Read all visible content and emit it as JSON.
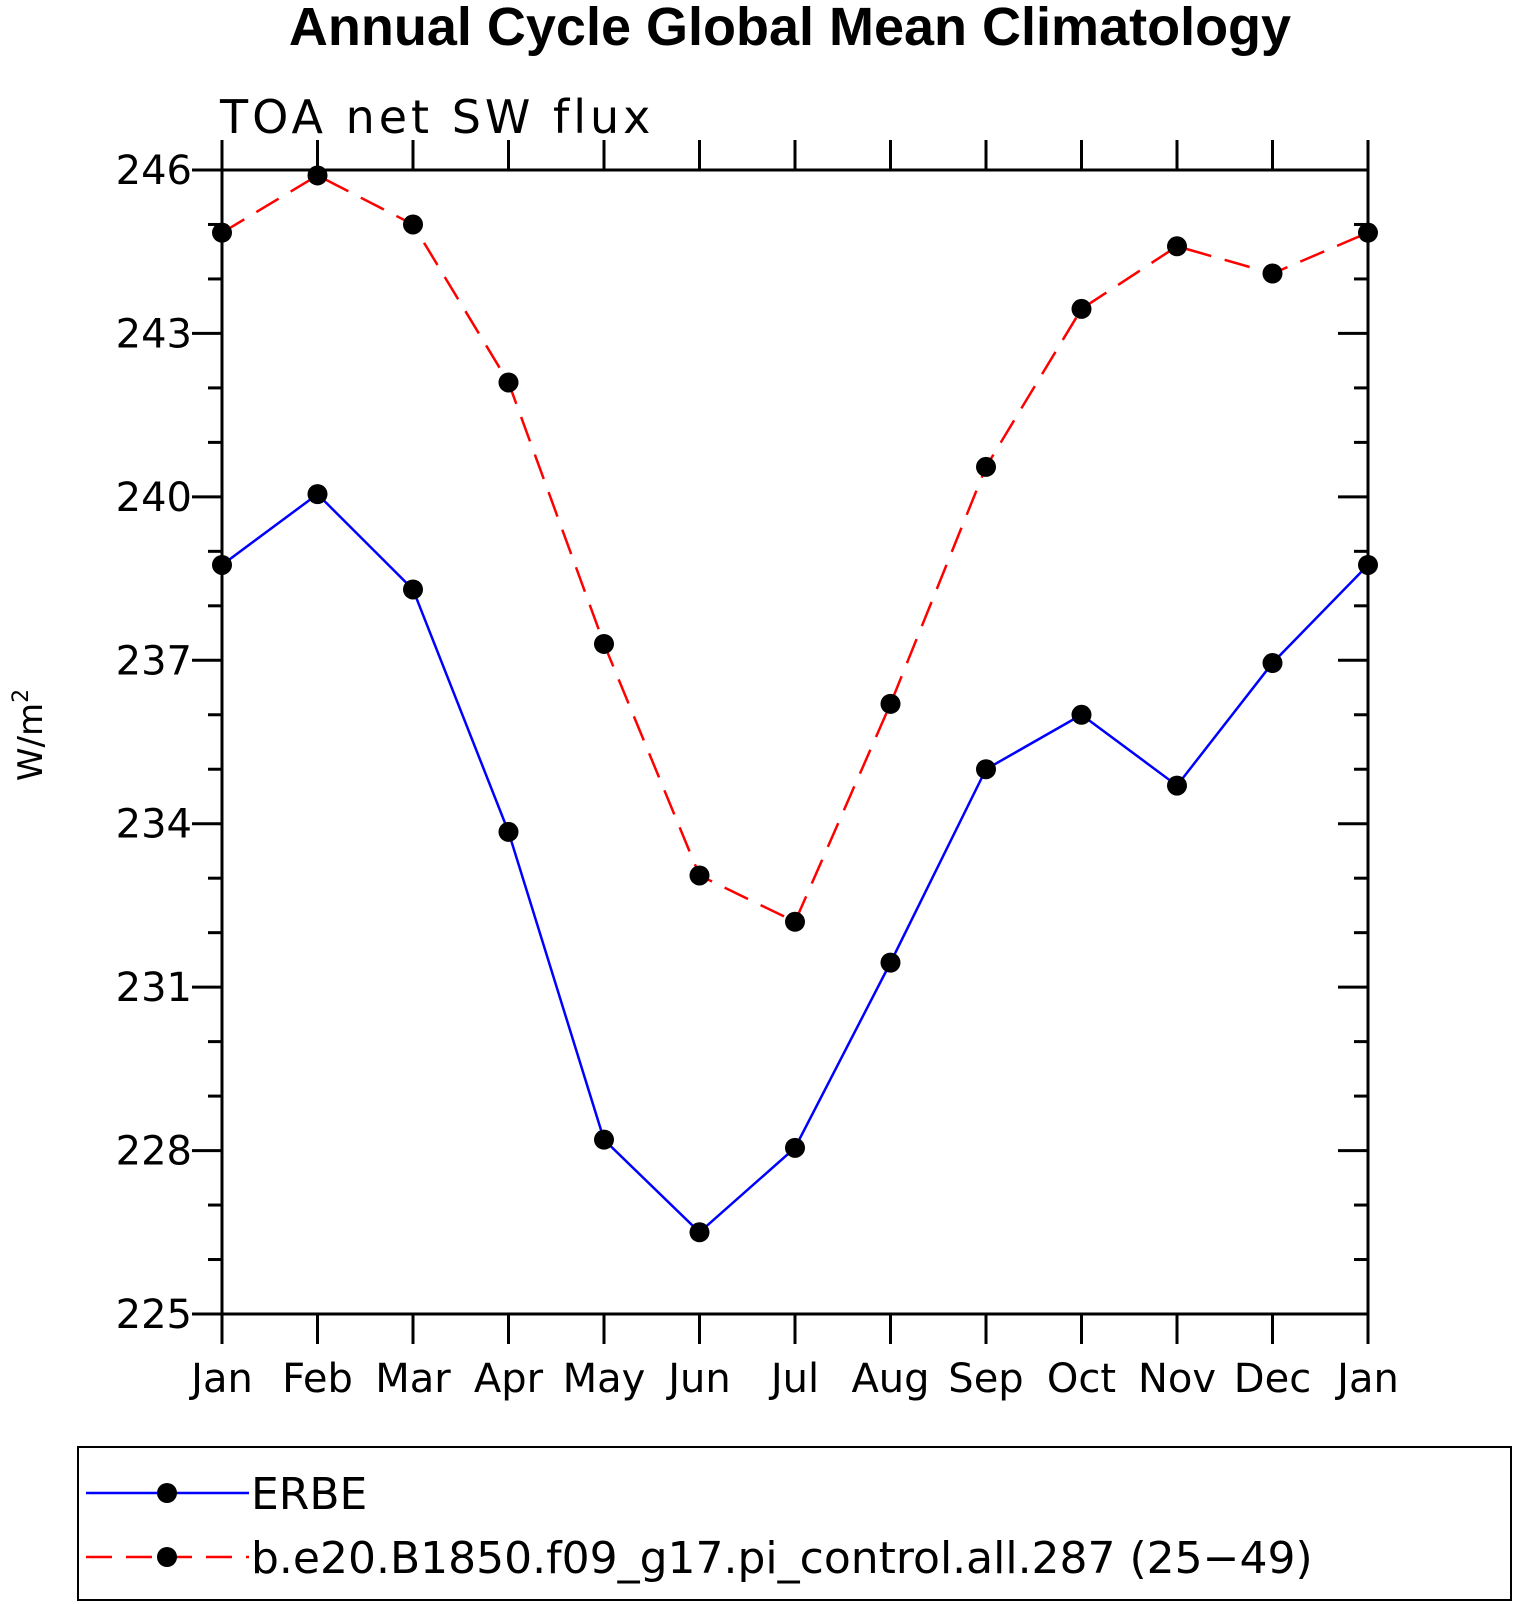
{
  "chart_data": {
    "type": "line",
    "title": "Annual Cycle Global Mean Climatology",
    "subtitle": "TOA net SW flux",
    "ylabel": "W/m",
    "ylabel_superscript": "2",
    "categories": [
      "Jan",
      "Feb",
      "Mar",
      "Apr",
      "May",
      "Jun",
      "Jul",
      "Aug",
      "Sep",
      "Oct",
      "Nov",
      "Dec",
      "Jan"
    ],
    "ylim": [
      225,
      246
    ],
    "yticks": [
      225,
      228,
      231,
      234,
      237,
      240,
      243,
      246
    ],
    "series": [
      {
        "name": "ERBE",
        "color": "#0000ff",
        "dash": "solid",
        "marker": "dot",
        "values": [
          238.75,
          240.05,
          238.3,
          233.85,
          228.2,
          226.5,
          228.05,
          231.45,
          235.0,
          236.0,
          234.7,
          236.95,
          238.75
        ]
      },
      {
        "name": "b.e20.B1850.f09_g17.pi_control.all.287 (25−49)",
        "color": "#ff0000",
        "dash": "dashed",
        "marker": "dot",
        "values": [
          244.85,
          245.9,
          245.0,
          242.1,
          237.3,
          233.05,
          232.2,
          236.2,
          240.55,
          243.45,
          244.6,
          244.1,
          244.85
        ]
      }
    ],
    "legend_position": "bottom"
  }
}
